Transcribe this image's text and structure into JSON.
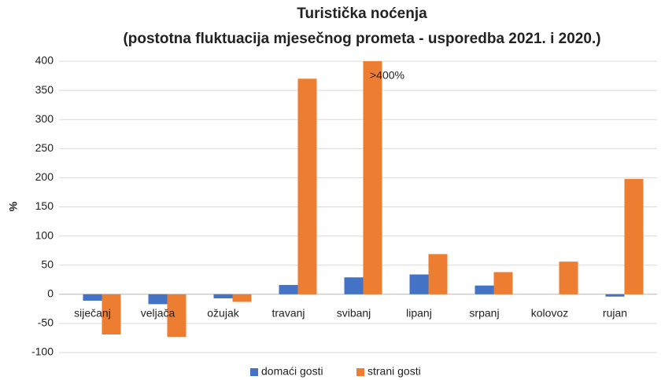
{
  "chart_data": {
    "type": "bar",
    "title": [
      "Turistička noćenja",
      "(postotna fluktuacija  mjesečnog prometa - usporedba 2021. i 2020.)"
    ],
    "y_label": "%",
    "categories": [
      "siječanj",
      "veljača",
      "ožujak",
      "travanj",
      "svibanj",
      "lipanj",
      "srpanj",
      "kolovoz",
      "rujan"
    ],
    "series": [
      {
        "name": "domaći gosti",
        "color": "#4472c4",
        "values": [
          -11,
          -17,
          -7,
          16,
          29,
          34,
          15,
          0,
          -4
        ]
      },
      {
        "name": "strani gosti",
        "color": "#ed7d31",
        "values": [
          -69,
          -73,
          -13,
          370,
          400,
          69,
          38,
          56,
          198
        ]
      }
    ],
    "annotations": [
      ">400%"
    ],
    "ylim": [
      -100,
      400
    ],
    "yticks": [
      -100,
      -50,
      0,
      50,
      100,
      150,
      200,
      250,
      300,
      350,
      400
    ],
    "grid": true,
    "legend": "bottom"
  }
}
